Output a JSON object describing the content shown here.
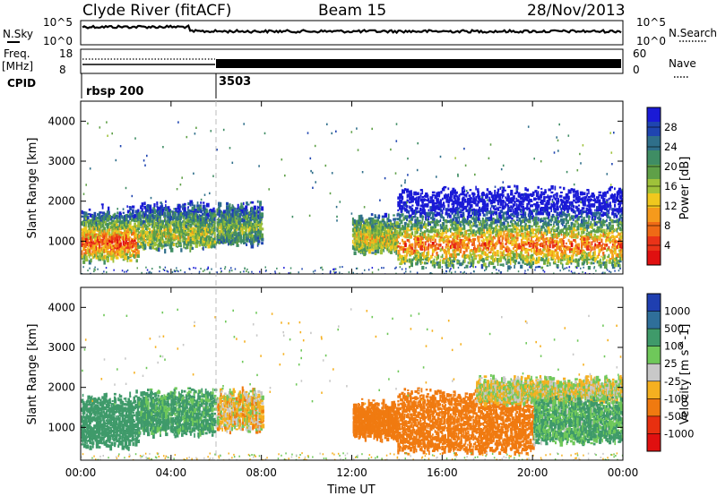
{
  "header": {
    "station": "Clyde River (fitACF)",
    "beam": "Beam 15",
    "date": "28/Nov/2013"
  },
  "top_panels": {
    "nsky_label": "N.Sky",
    "nsky_ticks": [
      "10^5",
      "10^0"
    ],
    "nsearch_label": "N.Search",
    "nsearch_ticks": [
      "10^5",
      "10^0"
    ],
    "freq_label": "Freq.",
    "freq_unit": "[MHz]",
    "freq_ticks": [
      "18",
      "8"
    ],
    "nave_label": "Nave",
    "nave_ticks": [
      "60",
      "0"
    ],
    "cpid_label": "CPID",
    "cpid_segments": [
      {
        "label": "rbsp 200",
        "start_hour": 0,
        "end_hour": 6.0
      },
      {
        "label": "3503",
        "start_hour": 6.0,
        "end_hour": 24
      }
    ]
  },
  "chart_data": [
    {
      "type": "heatmap",
      "title": "",
      "ylabel": "Slant Range [km]",
      "xlabel": "",
      "x_range_hours": [
        0,
        24
      ],
      "ylim": [
        180,
        4500
      ],
      "yticks": [
        1000,
        2000,
        3000,
        4000
      ],
      "colorbar": {
        "label": "Power [dB]",
        "range": [
          0,
          32
        ],
        "ticks": [
          "28",
          "24",
          "20",
          "16",
          "12",
          "8",
          "4"
        ],
        "colors": [
          "#1a1ad6",
          "#1f45b0",
          "#2f6f8a",
          "#3f8d64",
          "#5fa048",
          "#9fc23a",
          "#f0c81e",
          "#f59a1c",
          "#ef6a16",
          "#ea3318",
          "#e01010"
        ]
      },
      "echo_regions": [
        {
          "start_hour": 0.0,
          "end_hour": 2.5,
          "range_low_km": 600,
          "range_high_km": 1800,
          "core_km": 1000,
          "level": 0.85
        },
        {
          "start_hour": 2.5,
          "end_hour": 5.9,
          "range_low_km": 900,
          "range_high_km": 1900,
          "core_km": 1200,
          "level": 0.55
        },
        {
          "start_hour": 6.0,
          "end_hour": 8.0,
          "range_low_km": 1000,
          "range_high_km": 1900,
          "core_km": 1350,
          "level": 0.45
        },
        {
          "start_hour": 12.0,
          "end_hour": 14.0,
          "range_low_km": 800,
          "range_high_km": 1600,
          "core_km": 1100,
          "level": 0.6
        },
        {
          "start_hour": 14.0,
          "end_hour": 24.0,
          "range_low_km": 450,
          "range_high_km": 2300,
          "core_km": 950,
          "level": 0.8
        }
      ]
    },
    {
      "type": "heatmap",
      "title": "",
      "ylabel": "Slant Range [km]",
      "xlabel": "Time UT",
      "x_ticks": [
        "00:00",
        "04:00",
        "08:00",
        "12:00",
        "16:00",
        "20:00",
        "00:00"
      ],
      "x_range_hours": [
        0,
        24
      ],
      "ylim": [
        180,
        4500
      ],
      "yticks": [
        1000,
        2000,
        3000,
        4000
      ],
      "colorbar": {
        "label": "Velocity [m s^-1]",
        "range": [
          -1000,
          1000
        ],
        "ticks": [
          "1000",
          "500",
          "100",
          "25",
          "-25",
          "-100",
          "-500",
          "-1000"
        ],
        "colors": [
          "#1f3fb0",
          "#2f6f9a",
          "#3f9a6a",
          "#6fc85a",
          "#c8c8c8",
          "#f5b020",
          "#f07a10",
          "#e83010",
          "#e01010"
        ]
      },
      "echo_regions": [
        {
          "start_hour": 0.0,
          "end_hour": 2.5,
          "range_low_km": 600,
          "range_high_km": 1800,
          "velocity": 400
        },
        {
          "start_hour": 2.5,
          "end_hour": 5.9,
          "range_low_km": 900,
          "range_high_km": 1900,
          "velocity": 150
        },
        {
          "start_hour": 6.0,
          "end_hour": 8.0,
          "range_low_km": 1000,
          "range_high_km": 1900,
          "velocity": -40
        },
        {
          "start_hour": 12.0,
          "end_hour": 14.0,
          "range_low_km": 800,
          "range_high_km": 1600,
          "velocity": -300
        },
        {
          "start_hour": 14.0,
          "end_hour": 20.0,
          "range_low_km": 450,
          "range_high_km": 1900,
          "velocity": -350
        },
        {
          "start_hour": 17.5,
          "end_hour": 24.0,
          "range_low_km": 1700,
          "range_high_km": 2200,
          "velocity": 0
        },
        {
          "start_hour": 20.0,
          "end_hour": 24.0,
          "range_low_km": 700,
          "range_high_km": 1700,
          "velocity": 120
        }
      ]
    }
  ]
}
